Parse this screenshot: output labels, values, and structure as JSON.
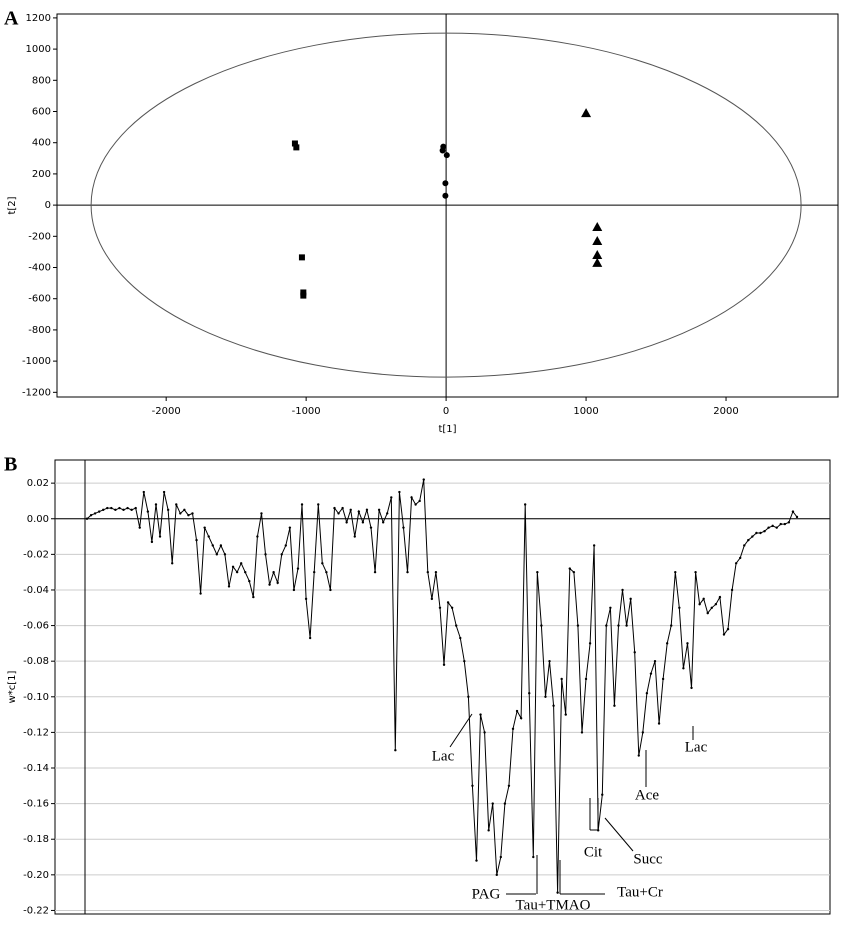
{
  "chart_data": [
    {
      "type": "scatter",
      "panel_label": "A",
      "x_label": "t[1]",
      "y_label": "t[2]",
      "xlim": [
        -2780,
        2800
      ],
      "ylim": [
        -1230,
        1225
      ],
      "xticks": [
        -2000,
        -1000,
        0,
        1000,
        2000
      ],
      "yticks": [
        -1200,
        -1000,
        -800,
        -600,
        -400,
        -200,
        0,
        200,
        400,
        600,
        800,
        1000,
        1200
      ],
      "series": [
        {
          "marker": "square",
          "color": "#000000",
          "x": [
            -1080,
            -1070,
            -1030,
            -1020,
            -1020
          ],
          "values": [
            395,
            370,
            -335,
            -560,
            -580
          ]
        },
        {
          "marker": "circle",
          "color": "#000000",
          "x": [
            -20,
            -25,
            5,
            -5,
            -5
          ],
          "values": [
            375,
            350,
            320,
            140,
            60
          ]
        },
        {
          "marker": "triangle",
          "color": "#000000",
          "x": [
            1000,
            1080,
            1080,
            1080,
            1080
          ],
          "values": [
            590,
            -140,
            -230,
            -320,
            -370
          ]
        }
      ]
    },
    {
      "type": "line",
      "panel_label": "B",
      "y_label": "w*c[1]",
      "ylim": [
        -0.222,
        0.033
      ],
      "yticks": [
        0.02,
        {
          "value": 0,
          "label": "0.00"
        },
        -0.02,
        -0.04,
        -0.06,
        -0.08,
        {
          "value": -0.1,
          "label": "-0.10"
        },
        -0.12,
        -0.14,
        -0.16,
        -0.18,
        {
          "value": -0.2,
          "label": "-0.20"
        },
        -0.22
      ],
      "grid": true,
      "color": "#000000",
      "values": [
        0,
        0.002,
        0.003,
        0.004,
        0.005,
        0.006,
        0.006,
        0.005,
        0.006,
        0.005,
        0.006,
        0.005,
        0.006,
        -0.005,
        0.015,
        0.004,
        -0.013,
        0.008,
        -0.01,
        0.015,
        0.005,
        -0.025,
        0.008,
        0.003,
        0.005,
        0.002,
        0.003,
        -0.012,
        -0.042,
        -0.005,
        -0.01,
        -0.015,
        -0.02,
        -0.015,
        -0.02,
        -0.038,
        -0.027,
        -0.03,
        -0.025,
        -0.03,
        -0.035,
        -0.044,
        -0.01,
        0.003,
        -0.02,
        -0.037,
        -0.03,
        -0.036,
        -0.02,
        -0.015,
        -0.005,
        -0.04,
        -0.028,
        0.008,
        -0.045,
        -0.067,
        -0.03,
        0.008,
        -0.025,
        -0.03,
        -0.04,
        0.006,
        0.003,
        0.006,
        -0.002,
        0.005,
        -0.01,
        0.004,
        -0.002,
        0.005,
        -0.005,
        -0.03,
        0.005,
        -0.002,
        0.003,
        0.012,
        -0.13,
        0.015,
        -0.005,
        -0.03,
        0.012,
        0.008,
        0.01,
        0.022,
        -0.03,
        -0.045,
        -0.03,
        -0.05,
        -0.082,
        -0.047,
        -0.05,
        -0.06,
        -0.067,
        -0.08,
        -0.1,
        -0.15,
        -0.192,
        -0.11,
        -0.12,
        -0.175,
        -0.16,
        -0.2,
        -0.19,
        -0.16,
        -0.15,
        -0.118,
        -0.108,
        -0.112,
        0.008,
        -0.098,
        -0.19,
        -0.03,
        -0.06,
        -0.1,
        -0.08,
        -0.105,
        -0.21,
        -0.09,
        -0.11,
        -0.028,
        -0.03,
        -0.06,
        -0.12,
        -0.09,
        -0.07,
        -0.015,
        -0.175,
        -0.155,
        -0.06,
        -0.05,
        -0.105,
        -0.06,
        -0.04,
        -0.06,
        -0.045,
        -0.075,
        -0.133,
        -0.12,
        -0.098,
        -0.087,
        -0.08,
        -0.115,
        -0.09,
        -0.07,
        -0.06,
        -0.03,
        -0.05,
        -0.084,
        -0.07,
        -0.095,
        -0.03,
        -0.048,
        -0.045,
        -0.053,
        -0.05,
        -0.048,
        -0.044,
        -0.065,
        -0.062,
        -0.04,
        -0.025,
        -0.022,
        -0.015,
        -0.012,
        -0.01,
        -0.008,
        -0.008,
        -0.007,
        -0.005,
        -0.004,
        -0.005,
        -0.003,
        -0.003,
        -0.002,
        0.004,
        0.001
      ],
      "annotations": [
        "Lac",
        "Lac",
        "Ace",
        "Succ",
        "Cit",
        "PAG",
        "Tau+TMAO",
        "Tau+Cr"
      ]
    }
  ]
}
